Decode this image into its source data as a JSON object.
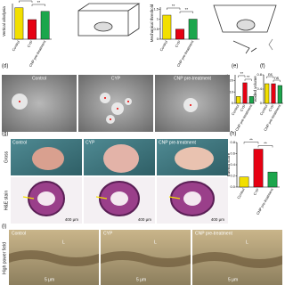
{
  "panels": [
    "(d)",
    "(e)",
    "(f)",
    "(g)",
    "(h)",
    "(i)"
  ],
  "colors": [
    "#f2df00",
    "#e60012",
    "#1ca64c"
  ],
  "categories": [
    "Control",
    "CYP",
    "CNP pre-treatment"
  ],
  "charts": [
    {
      "y_label": "Vertical allodynia",
      "values": [
        88,
        55,
        78
      ],
      "ylim": [
        0,
        100
      ],
      "yticks": [],
      "annotations": [
        "**",
        "**"
      ]
    },
    {
      "y_label": "Mechanical threshold",
      "values": [
        1.2,
        0.5,
        1.0
      ],
      "ylim": [
        0,
        1.6
      ],
      "yticks": [
        0,
        0.5,
        1,
        1.5
      ],
      "annotations": [
        "**",
        "**"
      ]
    },
    {
      "y_label": "Number of spots",
      "values": [
        6,
        18,
        6
      ],
      "ylim": [
        0,
        25
      ],
      "yticks": [
        0,
        10,
        20
      ],
      "annotations": [
        "**",
        "**"
      ]
    },
    {
      "y_label": "Voided volume",
      "values": [
        0.55,
        0.55,
        0.5
      ],
      "ylim": [
        0,
        0.8
      ],
      "yticks": [
        0,
        0.4,
        0.8
      ],
      "annotations": [
        "ns",
        "ns"
      ]
    },
    {
      "y_label": "Edema score",
      "values": [
        0.18,
        0.68,
        0.27
      ],
      "ylim": [
        0,
        0.8
      ],
      "yticks": [
        {
          "value": 0,
          "label": "0.0"
        },
        {
          "value": 0.2,
          "label": "0.2"
        },
        {
          "value": 0.4,
          "label": "0.4"
        },
        {
          "value": 0.6,
          "label": "0.6"
        },
        {
          "value": 0.8,
          "label": "0.8"
        }
      ],
      "annotations": [
        "**",
        "**"
      ]
    }
  ],
  "images": {
    "g_rows": [
      "Gross",
      "H&E stain"
    ],
    "g_scale": "400 μm",
    "i_row": "High power field",
    "lumen": "L",
    "i_scale": "5 μm"
  }
}
